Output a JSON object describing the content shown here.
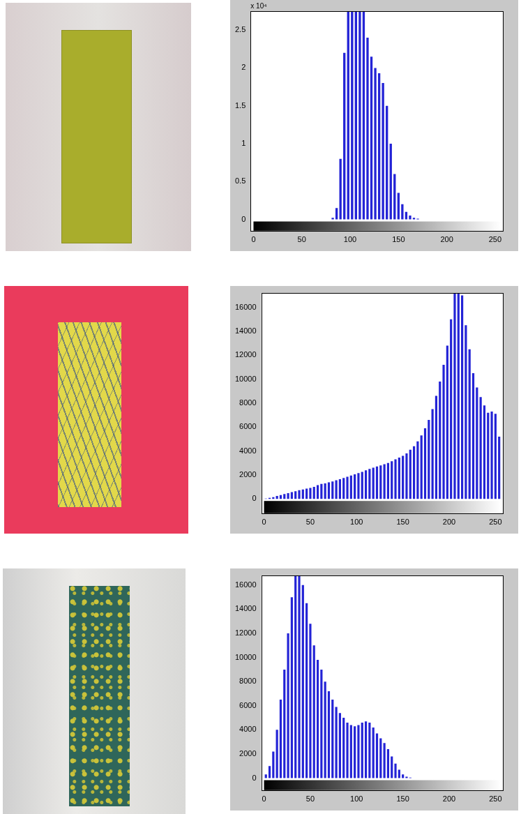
{
  "chart_data": [
    {
      "type": "histogram",
      "color": "#2323d6",
      "grid": false,
      "annotation": "x 10⁴",
      "bins": [
        0,
        4,
        8,
        12,
        16,
        20,
        24,
        28,
        32,
        36,
        40,
        44,
        48,
        52,
        56,
        60,
        64,
        68,
        72,
        76,
        80,
        84,
        88,
        92,
        96,
        100,
        104,
        108,
        112,
        116,
        120,
        124,
        128,
        132,
        136,
        140,
        144,
        148,
        152,
        156,
        160,
        164,
        168,
        172,
        176,
        180,
        184,
        188,
        192,
        196,
        200,
        204,
        208,
        212,
        216,
        220,
        224,
        228,
        232,
        236,
        240,
        244,
        248,
        252,
        256
      ],
      "counts": [
        0,
        0,
        0,
        0,
        0,
        0,
        0,
        0,
        0,
        0,
        0,
        0,
        0,
        0,
        0,
        0,
        0,
        0,
        0,
        0,
        0.02,
        0.15,
        0.8,
        2.2,
        3.3,
        3.6,
        3.5,
        3.4,
        2.9,
        2.4,
        2.15,
        2.0,
        1.93,
        1.8,
        1.5,
        1.0,
        0.6,
        0.35,
        0.2,
        0.1,
        0.05,
        0.02,
        0.01,
        0,
        0,
        0,
        0,
        0,
        0,
        0,
        0,
        0,
        0,
        0,
        0,
        0,
        0,
        0,
        0,
        0,
        0,
        0,
        0,
        0
      ],
      "xlim": [
        -3,
        258
      ],
      "xticks": [
        0,
        50,
        100,
        150,
        200,
        250
      ],
      "ylim": [
        -0.15,
        2.75
      ],
      "yticks": [
        0,
        0.5,
        1,
        1.5,
        2,
        2.5
      ]
    },
    {
      "type": "histogram",
      "color": "#2323d6",
      "grid": false,
      "bins": [
        0,
        4,
        8,
        12,
        16,
        20,
        24,
        28,
        32,
        36,
        40,
        44,
        48,
        52,
        56,
        60,
        64,
        68,
        72,
        76,
        80,
        84,
        88,
        92,
        96,
        100,
        104,
        108,
        112,
        116,
        120,
        124,
        128,
        132,
        136,
        140,
        144,
        148,
        152,
        156,
        160,
        164,
        168,
        172,
        176,
        180,
        184,
        188,
        192,
        196,
        200,
        204,
        208,
        212,
        216,
        220,
        224,
        228,
        232,
        236,
        240,
        244,
        248,
        252,
        256
      ],
      "counts": [
        30,
        80,
        150,
        250,
        320,
        400,
        480,
        560,
        640,
        720,
        780,
        850,
        920,
        1000,
        1150,
        1250,
        1300,
        1380,
        1450,
        1550,
        1650,
        1750,
        1850,
        1950,
        2050,
        2150,
        2250,
        2380,
        2500,
        2600,
        2700,
        2800,
        2900,
        3000,
        3150,
        3300,
        3450,
        3600,
        3800,
        4100,
        4400,
        4800,
        5300,
        5900,
        6600,
        7500,
        8600,
        9800,
        11200,
        12800,
        15000,
        17500,
        18000,
        17000,
        14500,
        12500,
        10500,
        9300,
        8500,
        7800,
        7200,
        7300,
        7100,
        5200
      ],
      "xlim": [
        -3,
        258
      ],
      "xticks": [
        0,
        50,
        100,
        150,
        200,
        250
      ],
      "ylim": [
        -1200,
        17200
      ],
      "yticks": [
        0,
        2000,
        4000,
        6000,
        8000,
        10000,
        12000,
        14000,
        16000
      ]
    },
    {
      "type": "histogram",
      "color": "#2323d6",
      "grid": false,
      "bins": [
        0,
        4,
        8,
        12,
        16,
        20,
        24,
        28,
        32,
        36,
        40,
        44,
        48,
        52,
        56,
        60,
        64,
        68,
        72,
        76,
        80,
        84,
        88,
        92,
        96,
        100,
        104,
        108,
        112,
        116,
        120,
        124,
        128,
        132,
        136,
        140,
        144,
        148,
        152,
        156,
        160,
        164,
        168,
        172,
        176,
        180,
        184,
        188,
        192,
        196,
        200,
        204,
        208,
        212,
        216,
        220,
        224,
        228,
        232,
        236,
        240,
        244,
        248,
        252,
        256
      ],
      "counts": [
        300,
        1000,
        2200,
        4000,
        6500,
        9000,
        12000,
        15000,
        17000,
        17200,
        16000,
        14500,
        12800,
        11000,
        9800,
        9000,
        8000,
        7200,
        6500,
        5900,
        5400,
        5000,
        4600,
        4400,
        4300,
        4400,
        4600,
        4700,
        4600,
        4200,
        3700,
        3300,
        2900,
        2400,
        1800,
        1200,
        700,
        300,
        120,
        40,
        0,
        0,
        0,
        0,
        0,
        0,
        0,
        0,
        0,
        0,
        0,
        0,
        0,
        0,
        0,
        0,
        0,
        0,
        0,
        0,
        0,
        0,
        0,
        0
      ],
      "xlim": [
        -3,
        258
      ],
      "xticks": [
        0,
        50,
        100,
        150,
        200,
        250
      ],
      "ylim": [
        -1000,
        16800
      ],
      "yticks": [
        0,
        2000,
        4000,
        6000,
        8000,
        10000,
        12000,
        14000,
        16000
      ]
    }
  ]
}
